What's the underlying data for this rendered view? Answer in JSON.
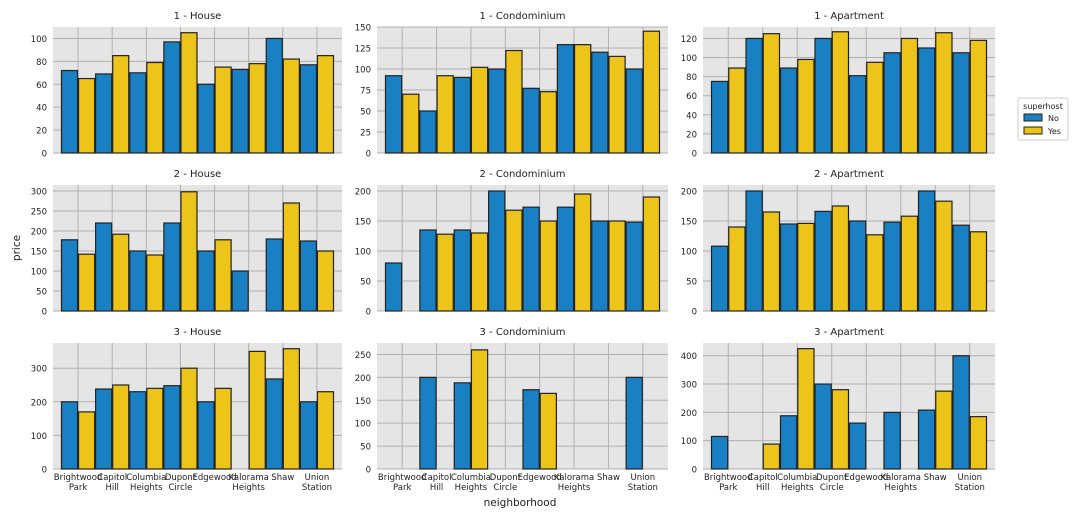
{
  "colors": {
    "No": "#1a80c4",
    "Yes": "#ecc41a",
    "panel_bg": "#e5e5e5",
    "grid": "#b0b0b0"
  },
  "chart_data": {
    "type": "bar",
    "xlabel": "neighborhood",
    "ylabel": "price",
    "categories": [
      "Brightwood Park",
      "Capitol Hill",
      "Columbia Heights",
      "Dupont Circle",
      "Edgewood",
      "Kalorama Heights",
      "Shaw",
      "Union Station"
    ],
    "category_labels": [
      [
        "Brightwood",
        "Park"
      ],
      [
        "Capitol",
        "Hill"
      ],
      [
        "Columbia",
        "Heights"
      ],
      [
        "Dupont",
        "Circle"
      ],
      [
        "Edgewood",
        ""
      ],
      [
        "Kalorama",
        "Heights"
      ],
      [
        "Shaw",
        ""
      ],
      [
        "Union",
        "Station"
      ]
    ],
    "legend": {
      "title": "superhost",
      "entries": [
        "No",
        "Yes"
      ],
      "placement": "right"
    },
    "grid": true,
    "panels": [
      {
        "title": "1 - House",
        "ylim": [
          0,
          110
        ],
        "ticks": [
          0,
          20,
          40,
          60,
          80,
          100
        ],
        "series": [
          {
            "name": "No",
            "values": [
              72,
              69,
              70,
              97,
              60,
              73,
              100,
              77
            ]
          },
          {
            "name": "Yes",
            "values": [
              65,
              85,
              79,
              105,
              75,
              78,
              82,
              85
            ]
          }
        ]
      },
      {
        "title": "1 - Condominium",
        "ylim": [
          0,
          150
        ],
        "ticks": [
          0,
          25,
          50,
          75,
          100,
          125,
          150
        ],
        "series": [
          {
            "name": "No",
            "values": [
              92,
              50,
              90,
              100,
              77,
              129,
              120,
              100
            ]
          },
          {
            "name": "Yes",
            "values": [
              70,
              92,
              102,
              122,
              73,
              129,
              115,
              145
            ]
          }
        ]
      },
      {
        "title": "1 - Apartment",
        "ylim": [
          0,
          132
        ],
        "ticks": [
          0,
          20,
          40,
          60,
          80,
          100,
          120
        ],
        "series": [
          {
            "name": "No",
            "values": [
              75,
              120,
              89,
              120,
              81,
              105,
              110,
              105
            ]
          },
          {
            "name": "Yes",
            "values": [
              89,
              125,
              98,
              127,
              95,
              120,
              126,
              118
            ]
          }
        ]
      },
      {
        "title": "2 - House",
        "ylim": [
          0,
          315
        ],
        "ticks": [
          0,
          50,
          100,
          150,
          200,
          250,
          300
        ],
        "series": [
          {
            "name": "No",
            "values": [
              178,
              220,
              150,
              220,
              150,
              100,
              180,
              175
            ]
          },
          {
            "name": "Yes",
            "values": [
              142,
              192,
              140,
              298,
              178,
              null,
              270,
              150
            ]
          }
        ]
      },
      {
        "title": "2 - Condominium",
        "ylim": [
          0,
          210
        ],
        "ticks": [
          0,
          50,
          100,
          150,
          200
        ],
        "series": [
          {
            "name": "No",
            "values": [
              80,
              135,
              135,
              200,
              173,
              173,
              150,
              148
            ]
          },
          {
            "name": "Yes",
            "values": [
              null,
              128,
              130,
              168,
              150,
              195,
              150,
              190
            ]
          }
        ]
      },
      {
        "title": "2 - Apartment",
        "ylim": [
          0,
          210
        ],
        "ticks": [
          0,
          50,
          100,
          150,
          200
        ],
        "series": [
          {
            "name": "No",
            "values": [
              108,
              200,
              145,
              166,
              150,
              148,
              200,
              143
            ]
          },
          {
            "name": "Yes",
            "values": [
              140,
              165,
              146,
              175,
              127,
              158,
              183,
              132
            ]
          }
        ]
      },
      {
        "title": "3 - House",
        "ylim": [
          0,
          375
        ],
        "ticks": [
          0,
          100,
          200,
          300
        ],
        "series": [
          {
            "name": "No",
            "values": [
              200,
              238,
              230,
              248,
              200,
              null,
              268,
              200
            ]
          },
          {
            "name": "Yes",
            "values": [
              170,
              250,
              240,
              300,
              240,
              350,
              358,
              230
            ]
          }
        ]
      },
      {
        "title": "3 - Condominium",
        "ylim": [
          0,
          275
        ],
        "ticks": [
          0,
          50,
          100,
          150,
          200,
          250
        ],
        "series": [
          {
            "name": "No",
            "values": [
              null,
              200,
              188,
              null,
              173,
              null,
              null,
              200
            ]
          },
          {
            "name": "Yes",
            "values": [
              null,
              null,
              260,
              null,
              165,
              null,
              null,
              null
            ]
          }
        ]
      },
      {
        "title": "3 - Apartment",
        "ylim": [
          0,
          445
        ],
        "ticks": [
          0,
          100,
          200,
          300,
          400
        ],
        "series": [
          {
            "name": "No",
            "values": [
              115,
              null,
              188,
              300,
              162,
              200,
              208,
              400
            ]
          },
          {
            "name": "Yes",
            "values": [
              null,
              88,
              425,
              280,
              null,
              null,
              275,
              185
            ]
          }
        ]
      }
    ]
  }
}
